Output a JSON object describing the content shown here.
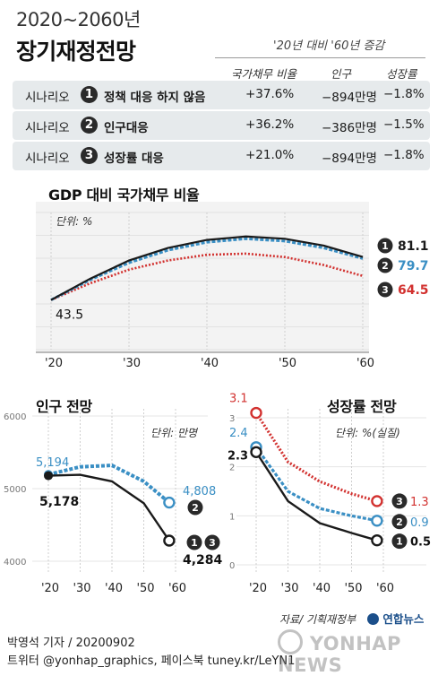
{
  "header": {
    "title_small": "2020~2060년",
    "title_large": "장기재정전망",
    "comparison_label": "'20년 대비 '60년 증감",
    "col_debt": "국가채무 비율",
    "col_pop": "인구",
    "col_growth": "성장률"
  },
  "scenarios": [
    {
      "label": "시나리오",
      "num": "1",
      "name": "정책 대응 하지 않음",
      "debt": "+37.6%",
      "pop": "−894만명",
      "growth": "−1.8%"
    },
    {
      "label": "시나리오",
      "num": "2",
      "name": "인구대응",
      "debt": "+36.2%",
      "pop": "−386만명",
      "growth": "−1.5%"
    },
    {
      "label": "시나리오",
      "num": "3",
      "name": "성장률 대응",
      "debt": "+21.0%",
      "pop": "−894만명",
      "growth": "−1.8%"
    }
  ],
  "colors": {
    "s1": "#1a1a1a",
    "s2": "#3a8fc4",
    "s3": "#d2312f",
    "row_bg": "#e6eaec"
  },
  "chart_data": [
    {
      "type": "line",
      "title": "GDP 대비 국가채무 비율",
      "unit": "단위: %",
      "x_ticks": [
        "'20",
        "'30",
        "'40",
        "'50",
        "'60"
      ],
      "xlim": [
        2020,
        2060
      ],
      "ylim": [
        0,
        120
      ],
      "y_ticks": [
        0,
        20,
        40,
        60,
        80,
        100,
        120
      ],
      "x": [
        2020,
        2025,
        2030,
        2035,
        2040,
        2045,
        2050,
        2055,
        2060
      ],
      "series": [
        {
          "num": "1",
          "values": [
            43.5,
            62,
            78,
            89,
            96,
            99,
            97,
            91,
            81.1
          ],
          "end_label": "81.1"
        },
        {
          "num": "2",
          "values": [
            43.5,
            61,
            76,
            87,
            94,
            97,
            95,
            89,
            79.7
          ],
          "end_label": "79.7"
        },
        {
          "num": "3",
          "values": [
            43.5,
            58,
            70,
            78,
            83,
            84,
            81,
            74,
            64.5
          ],
          "end_label": "64.5"
        }
      ],
      "start_label": "43.5"
    },
    {
      "type": "line",
      "title": "인구 전망",
      "unit": "단위: 만명",
      "x_ticks": [
        "'20",
        "'30",
        "'40",
        "'50",
        "'60"
      ],
      "xlim": [
        2020,
        2060
      ],
      "ylim": [
        4000,
        6000
      ],
      "y_ticks": [
        4000,
        5000,
        6000
      ],
      "series": [
        {
          "num": "2",
          "x": [
            2020,
            2030,
            2040,
            2050,
            2058
          ],
          "values": [
            5194,
            5300,
            5320,
            5100,
            4808
          ],
          "start_label": "5,194",
          "end_label": "4,808"
        },
        {
          "num": "13",
          "x": [
            2020,
            2030,
            2040,
            2050,
            2058
          ],
          "values": [
            5178,
            5190,
            5100,
            4800,
            4284
          ],
          "start_label": "5,178",
          "end_label": "4,284"
        }
      ]
    },
    {
      "type": "line",
      "title": "성장률 전망",
      "unit": "단위: %(실질)",
      "x_ticks": [
        "'20",
        "'30",
        "'40",
        "'50",
        "'60"
      ],
      "xlim": [
        2020,
        2060
      ],
      "ylim": [
        0,
        3
      ],
      "y_ticks": [
        0,
        1,
        2,
        3
      ],
      "series": [
        {
          "num": "3",
          "x": [
            2020,
            2030,
            2040,
            2050,
            2058
          ],
          "values": [
            3.1,
            2.1,
            1.7,
            1.45,
            1.3
          ],
          "start_label": "3.1",
          "end_label": "1.3"
        },
        {
          "num": "2",
          "x": [
            2020,
            2030,
            2040,
            2050,
            2058
          ],
          "values": [
            2.4,
            1.5,
            1.15,
            1.0,
            0.9
          ],
          "start_label": "2.4",
          "end_label": "0.9"
        },
        {
          "num": "1",
          "x": [
            2020,
            2030,
            2040,
            2050,
            2058
          ],
          "values": [
            2.3,
            1.3,
            0.85,
            0.65,
            0.5
          ],
          "start_label": "2.3",
          "end_label": "0.5"
        }
      ]
    }
  ],
  "footer": {
    "source": "자료/ 기획재정부",
    "logo_text": "연합뉴스",
    "author": "박영석 기자 /  20200902",
    "social": "트위터 @yonhap_graphics, 페이스북 tuney.kr/LeYN1",
    "watermark": "YONHAP NEWS"
  }
}
